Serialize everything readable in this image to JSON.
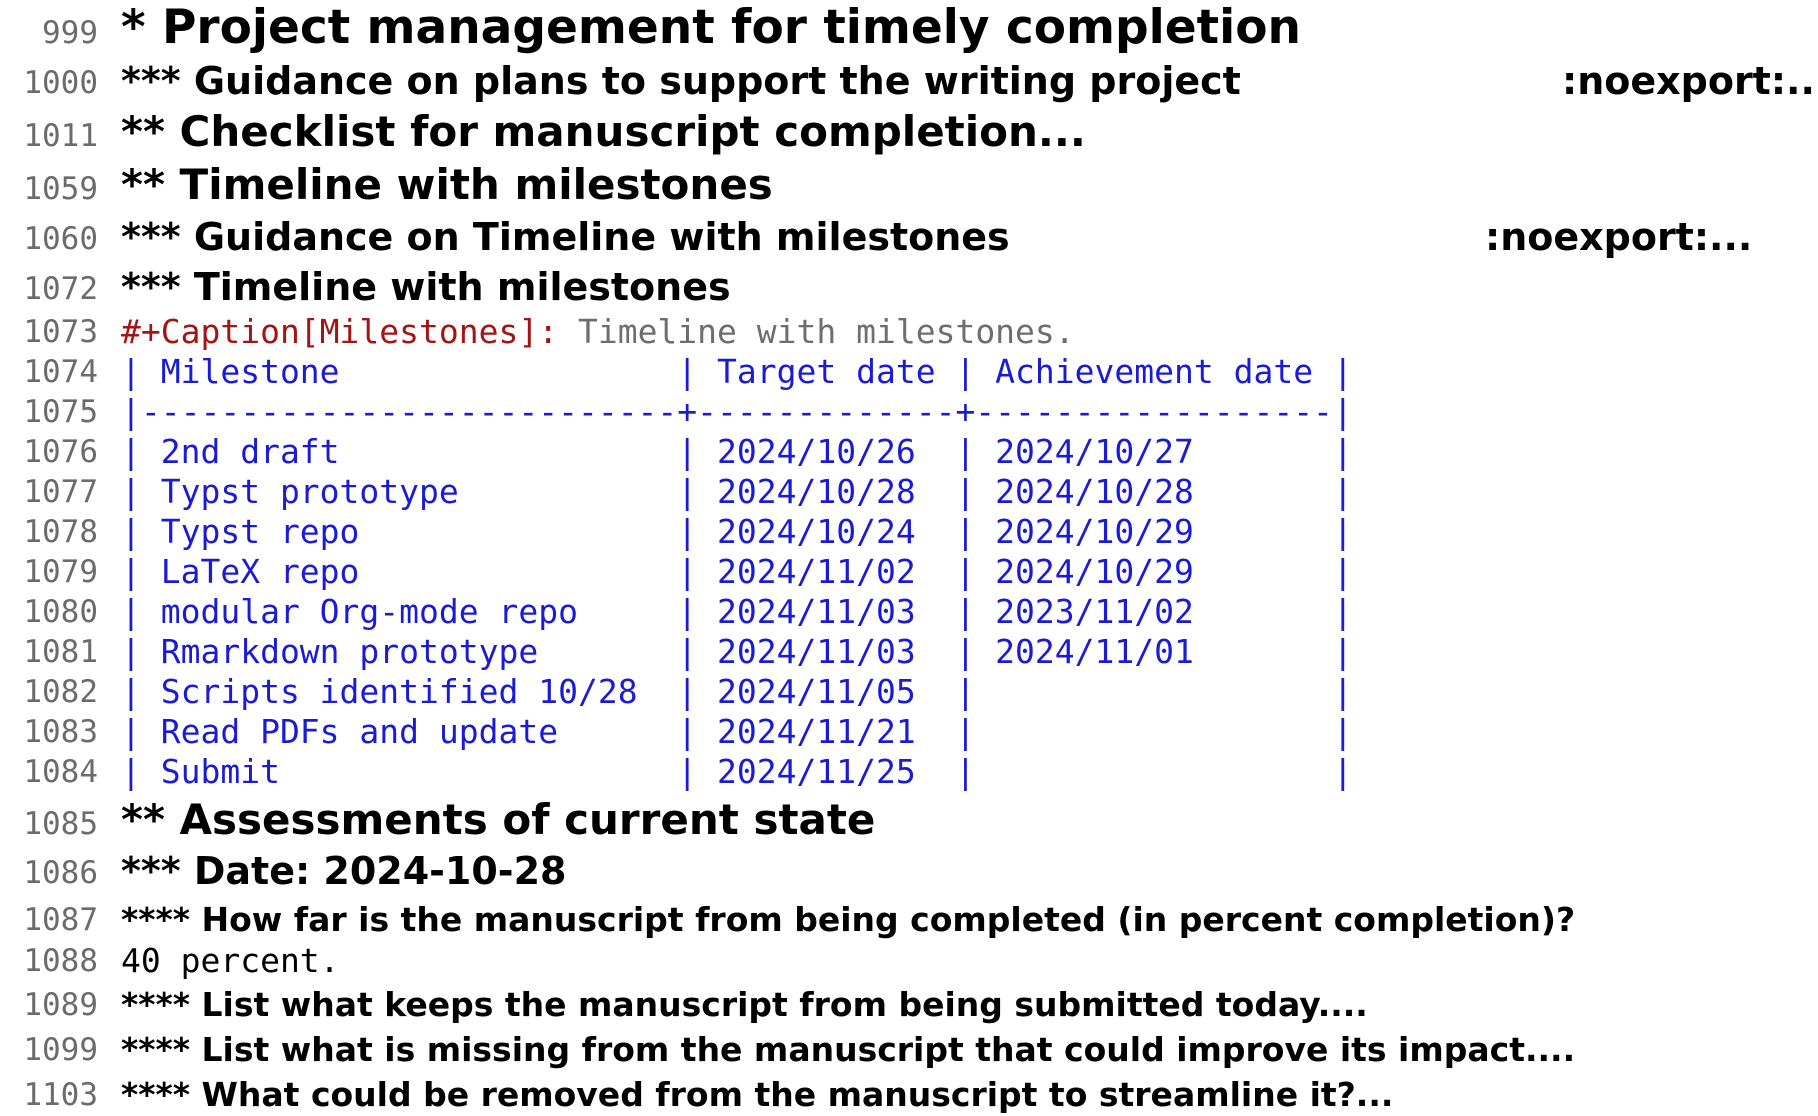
{
  "outline": {
    "l999": {
      "num": "999",
      "text": "* Project management for timely completion"
    },
    "l1000": {
      "num": "1000",
      "text": "*** Guidance on plans to support the writing project",
      "tag": ":noexport:..."
    },
    "l1011": {
      "num": "1011",
      "text": "** Checklist for manuscript completion..."
    },
    "l1059": {
      "num": "1059",
      "text": "** Timeline with milestones"
    },
    "l1060": {
      "num": "1060",
      "text": "*** Guidance on Timeline with milestones",
      "tag": ":noexport:..."
    },
    "l1072": {
      "num": "1072",
      "text": "*** Timeline with milestones"
    },
    "l1073": {
      "num": "1073",
      "caption_key": "#+Caption[Milestones]:",
      "caption_value": " Timeline with milestones."
    },
    "l1085": {
      "num": "1085",
      "text": "** Assessments of current state"
    },
    "l1086": {
      "num": "1086",
      "text": "*** Date: 2024-10-28"
    },
    "l1087": {
      "num": "1087",
      "text": "**** How far is the manuscript from being completed (in percent completion)?"
    },
    "l1088": {
      "num": "1088",
      "text": "40 percent."
    },
    "l1089": {
      "num": "1089",
      "text": "**** List what keeps the manuscript from being submitted today...."
    },
    "l1099": {
      "num": "1099",
      "text": "**** List what is missing from the manuscript that could improve its impact...."
    },
    "l1103": {
      "num": "1103",
      "text": "**** What could be removed from the manuscript to streamline it?..."
    }
  },
  "table": {
    "rows": [
      {
        "num": "1074",
        "text": "| Milestone                 | Target date | Achievement date |"
      },
      {
        "num": "1075",
        "text": "|---------------------------+-------------+------------------|"
      },
      {
        "num": "1076",
        "text": "| 2nd draft                 | 2024/10/26  | 2024/10/27       |"
      },
      {
        "num": "1077",
        "text": "| Typst prototype           | 2024/10/28  | 2024/10/28       |"
      },
      {
        "num": "1078",
        "text": "| Typst repo                | 2024/10/24  | 2024/10/29       |"
      },
      {
        "num": "1079",
        "text": "| LaTeX repo                | 2024/11/02  | 2024/10/29       |"
      },
      {
        "num": "1080",
        "text": "| modular Org-mode repo     | 2024/11/03  | 2023/11/02       |"
      },
      {
        "num": "1081",
        "text": "| Rmarkdown prototype       | 2024/11/03  | 2024/11/01       |"
      },
      {
        "num": "1082",
        "text": "| Scripts identified 10/28  | 2024/11/05  |                  |"
      },
      {
        "num": "1083",
        "text": "| Read PDFs and update      | 2024/11/21  |                  |"
      },
      {
        "num": "1084",
        "text": "| Submit                    | 2024/11/25  |                  |"
      }
    ]
  },
  "colors": {
    "table_text": "#1b1bd6",
    "caption_keyword": "#a31515",
    "caption_value": "#6e6e6e",
    "line_number": "#6b6b6b"
  }
}
